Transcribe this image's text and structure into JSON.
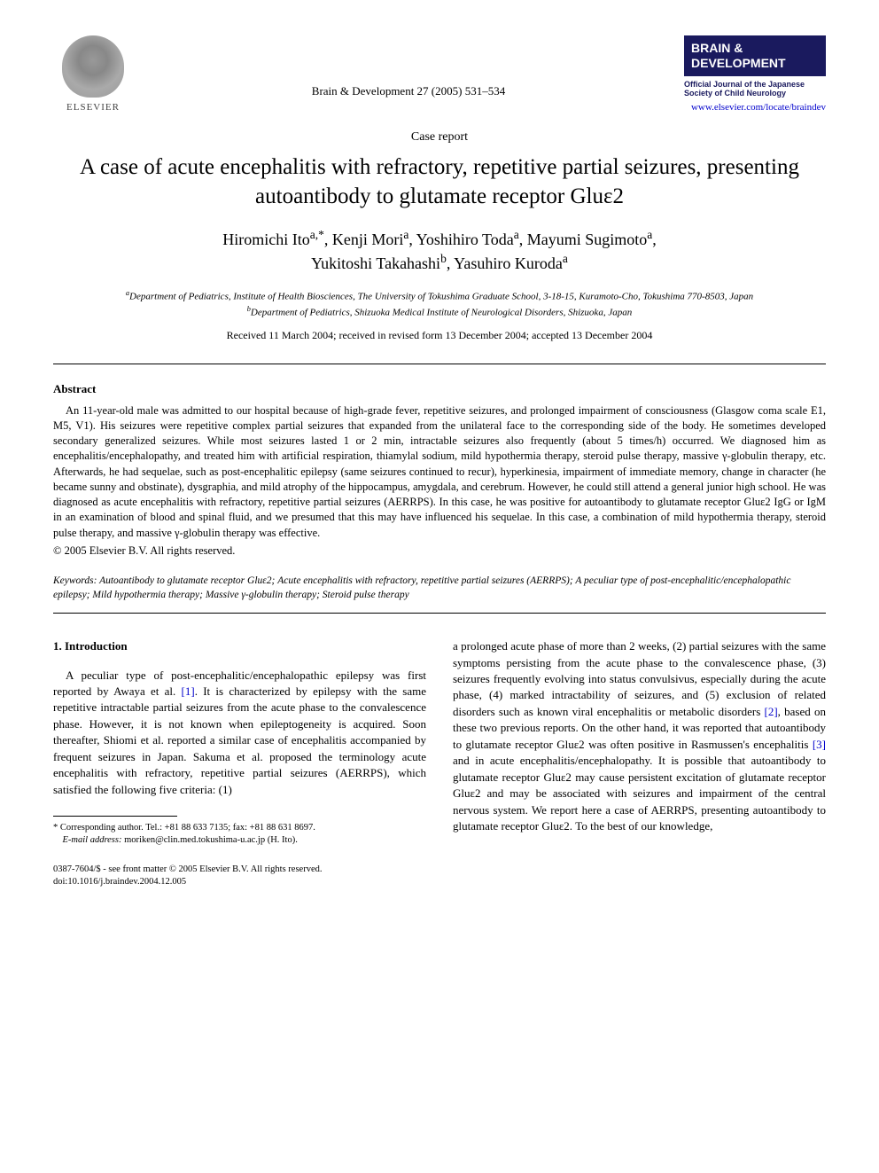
{
  "header": {
    "publisher_label": "ELSEVIER",
    "citation": "Brain & Development 27 (2005) 531–534",
    "badge_title": "BRAIN & DEVELOPMENT",
    "badge_subtitle": "Official Journal of the Japanese Society of Child Neurology",
    "journal_url": "www.elsevier.com/locate/braindev"
  },
  "article": {
    "type": "Case report",
    "title": "A case of acute encephalitis with refractory, repetitive partial seizures, presenting autoantibody to glutamate receptor Gluε2",
    "authors_line1": "Hiromichi Ito",
    "authors_sup1": "a,*",
    "authors_line1b": ", Kenji Mori",
    "authors_sup1b": "a",
    "authors_line1c": ", Yoshihiro Toda",
    "authors_sup1c": "a",
    "authors_line1d": ", Mayumi Sugimoto",
    "authors_sup1d": "a",
    "authors_line1e": ",",
    "authors_line2a": "Yukitoshi Takahashi",
    "authors_sup2a": "b",
    "authors_line2b": ", Yasuhiro Kuroda",
    "authors_sup2b": "a",
    "affiliation_a_sup": "a",
    "affiliation_a": "Department of Pediatrics, Institute of Health Biosciences, The University of Tokushima Graduate School, 3-18-15, Kuramoto-Cho, Tokushima 770-8503, Japan",
    "affiliation_b_sup": "b",
    "affiliation_b": "Department of Pediatrics, Shizuoka Medical Institute of Neurological Disorders, Shizuoka, Japan",
    "dates": "Received 11 March 2004; received in revised form 13 December 2004; accepted 13 December 2004"
  },
  "abstract": {
    "heading": "Abstract",
    "body": "An 11-year-old male was admitted to our hospital because of high-grade fever, repetitive seizures, and prolonged impairment of consciousness (Glasgow coma scale E1, M5, V1). His seizures were repetitive complex partial seizures that expanded from the unilateral face to the corresponding side of the body. He sometimes developed secondary generalized seizures. While most seizures lasted 1 or 2 min, intractable seizures also frequently (about 5 times/h) occurred. We diagnosed him as encephalitis/encephalopathy, and treated him with artificial respiration, thiamylal sodium, mild hypothermia therapy, steroid pulse therapy, massive γ-globulin therapy, etc. Afterwards, he had sequelae, such as post-encephalitic epilepsy (same seizures continued to recur), hyperkinesia, impairment of immediate memory, change in character (he became sunny and obstinate), dysgraphia, and mild atrophy of the hippocampus, amygdala, and cerebrum. However, he could still attend a general junior high school. He was diagnosed as acute encephalitis with refractory, repetitive partial seizures (AERRPS). In this case, he was positive for autoantibody to glutamate receptor Gluε2 IgG or IgM in an examination of blood and spinal fluid, and we presumed that this may have influenced his sequelae. In this case, a combination of mild hypothermia therapy, steroid pulse therapy, and massive γ-globulin therapy was effective.",
    "copyright": "© 2005 Elsevier B.V. All rights reserved."
  },
  "keywords": {
    "label": "Keywords:",
    "text": " Autoantibody to glutamate receptor Gluε2; Acute encephalitis with refractory, repetitive partial seizures (AERRPS); A peculiar type of post-encephalitic/encephalopathic epilepsy; Mild hypothermia therapy; Massive γ-globulin therapy; Steroid pulse therapy"
  },
  "body": {
    "section1_heading": "1. Introduction",
    "col1_p1_a": "A peculiar type of post-encephalitic/encephalopathic epilepsy was first reported by Awaya et al. ",
    "ref1": "[1]",
    "col1_p1_b": ". It is characterized by epilepsy with the same repetitive intractable partial seizures from the acute phase to the convalescence phase. However, it is not known when epileptogeneity is acquired. Soon thereafter, Shiomi et al. reported a similar case of encephalitis accompanied by frequent seizures in Japan. Sakuma et al. proposed the terminology acute encephalitis with refractory, repetitive partial seizures (AERRPS), which satisfied the following five criteria: (1)",
    "col2_p1_a": "a prolonged acute phase of more than 2 weeks, (2) partial seizures with the same symptoms persisting from the acute phase to the convalescence phase, (3) seizures frequently evolving into status convulsivus, especially during the acute phase, (4) marked intractability of seizures, and (5) exclusion of related disorders such as known viral encephalitis or metabolic disorders ",
    "ref2": "[2]",
    "col2_p1_b": ", based on these two previous reports. On the other hand, it was reported that autoantibody to glutamate receptor Gluε2 was often positive in Rasmussen's encephalitis ",
    "ref3": "[3]",
    "col2_p1_c": " and in acute encephalitis/encephalopathy. It is possible that autoantibody to glutamate receptor Gluε2 may cause persistent excitation of glutamate receptor Gluε2 and may be associated with seizures and impairment of the central nervous system. We report here a case of AERRPS, presenting autoantibody to glutamate receptor Gluε2. To the best of our knowledge,"
  },
  "footnote": {
    "corresponding": "* Corresponding author. Tel.: +81 88 633 7135; fax: +81 88 631 8697.",
    "email_label": "E-mail address:",
    "email": " moriken@clin.med.tokushima-u.ac.jp (H. Ito)."
  },
  "footer": {
    "left_line1": "0387-7604/$ - see front matter © 2005 Elsevier B.V. All rights reserved.",
    "left_line2": "doi:10.1016/j.braindev.2004.12.005"
  },
  "colors": {
    "text": "#000000",
    "link": "#0000cc",
    "badge_bg": "#1a1a5e",
    "badge_fg": "#ffffff",
    "background": "#ffffff"
  },
  "typography": {
    "title_fontsize": 25,
    "authors_fontsize": 18,
    "body_fontsize": 13,
    "abstract_fontsize": 12.5,
    "footnote_fontsize": 10.5,
    "font_family": "Times New Roman"
  }
}
